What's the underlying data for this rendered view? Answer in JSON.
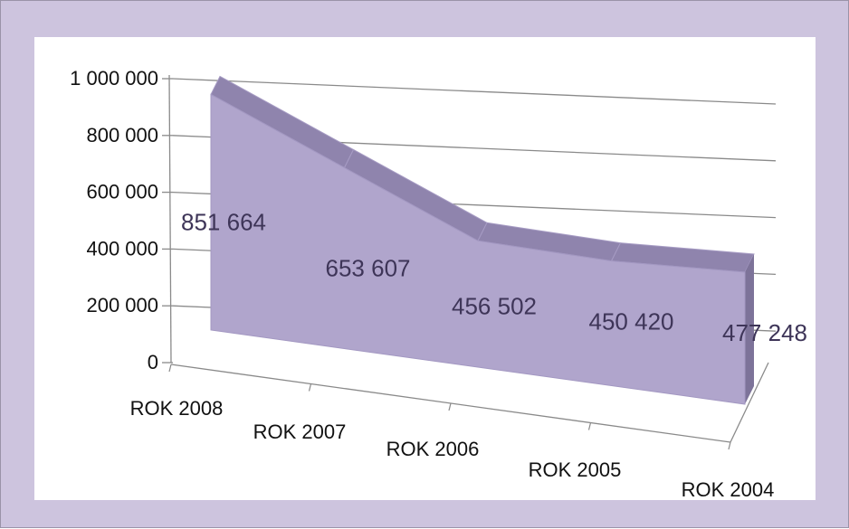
{
  "chart_data": {
    "type": "area",
    "style": "3d",
    "categories": [
      "ROK  2008",
      "ROK  2007",
      "ROK 2006",
      "ROK  2005",
      "ROK 2004"
    ],
    "series": [
      {
        "values": [
          851664,
          653607,
          456502,
          450420,
          477248
        ]
      }
    ],
    "data_labels": [
      "851 664",
      "653 607",
      "456 502",
      "450 420",
      "477 248"
    ],
    "y_ticks": [
      {
        "value": 0,
        "label": "0"
      },
      {
        "value": 200000,
        "label": "200 000"
      },
      {
        "value": 400000,
        "label": "400 000"
      },
      {
        "value": 600000,
        "label": "600 000"
      },
      {
        "value": 800000,
        "label": "800 000"
      },
      {
        "value": 1000000,
        "label": "1 000 000"
      }
    ],
    "ylim": [
      0,
      1000000
    ],
    "grid": true,
    "legend": "none",
    "colors": {
      "area_front": "#b0a5cc",
      "area_top": "#8f84ad",
      "gridline": "#8a8a8a",
      "frame_background": "#cdc4de",
      "plot_background": "#ffffff",
      "data_label": "#3e3558"
    }
  }
}
